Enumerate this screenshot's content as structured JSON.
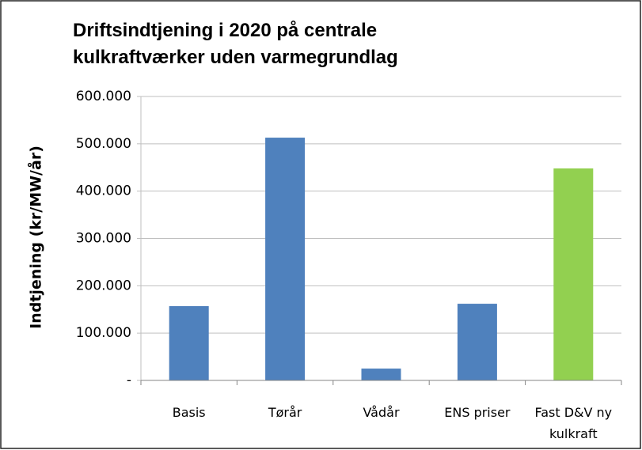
{
  "chart_data": {
    "type": "bar",
    "title": "Driftsindtjening i 2020 på centrale\nkulkraftværker uden varmegrundlag",
    "y_label": "Indtjening (kr/MW/år)",
    "categories": [
      "Basis",
      "Tørår",
      "Vådår",
      "ENS priser",
      "Fast D&V ny kulkraft"
    ],
    "values": [
      157000,
      513000,
      25000,
      162000,
      448000
    ],
    "colors": [
      "#4f81bd",
      "#4f81bd",
      "#4f81bd",
      "#4f81bd",
      "#92d050"
    ],
    "ylim": [
      0,
      600000
    ],
    "yticks": [
      {
        "value": 0,
        "label": "-"
      },
      {
        "value": 100000,
        "label": "100.000"
      },
      {
        "value": 200000,
        "label": "200.000"
      },
      {
        "value": 300000,
        "label": "300.000"
      },
      {
        "value": 400000,
        "label": "400.000"
      },
      {
        "value": 500000,
        "label": "500.000"
      },
      {
        "value": 600000,
        "label": "600.000"
      }
    ],
    "grid": true
  }
}
